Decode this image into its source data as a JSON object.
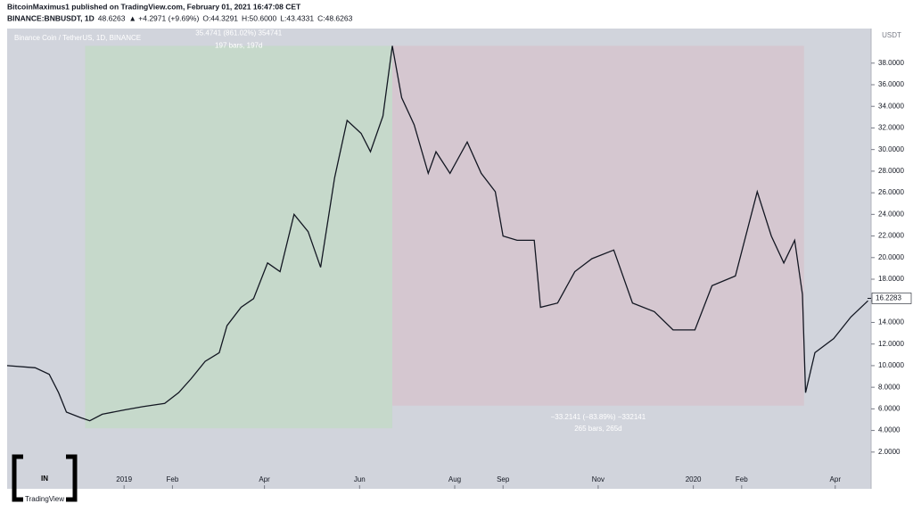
{
  "chart_data": {
    "type": "line",
    "header_line1": "BitcoinMaximus1 published on TradingView.com, February 01, 2021 16:47:08 CET",
    "header_symbol": "BINANCE:BNBUSDT, 1D",
    "header_price": "48.6263",
    "header_change": "▲ +4.2971 (+9.69%)",
    "header_ohlc": [
      "O:44.3291",
      "H:50.6000",
      "L:43.4331",
      "C:48.6263"
    ],
    "legend": "Binance Coin / TetherUS, 1D, BINANCE",
    "currency": "USDT",
    "logo": "IN",
    "watermark": "TradingView",
    "color": "#131722",
    "x": [
      -75,
      -57,
      -48,
      -42,
      -37,
      -28,
      -22,
      -14,
      0,
      12,
      26,
      35,
      43,
      52,
      61,
      66,
      75,
      83,
      92,
      100,
      109,
      118,
      126,
      135,
      143,
      152,
      158,
      166,
      172,
      178,
      186,
      195,
      200,
      209,
      220,
      229,
      238,
      243,
      252,
      263,
      267,
      278,
      289,
      300,
      314,
      326,
      340,
      352,
      366,
      377,
      392,
      406,
      415,
      423,
      430,
      435,
      437,
      443,
      455,
      466,
      477
    ],
    "values": [
      10.0,
      9.8,
      9.2,
      7.5,
      5.7,
      5.2,
      4.9,
      5.5,
      5.9,
      6.2,
      6.5,
      7.5,
      8.8,
      10.4,
      11.2,
      13.7,
      15.4,
      16.2,
      19.5,
      18.7,
      24.0,
      22.4,
      19.1,
      27.4,
      32.7,
      31.5,
      29.8,
      33.1,
      39.6,
      34.8,
      32.3,
      27.8,
      29.8,
      27.8,
      30.7,
      27.8,
      26.1,
      22.0,
      21.6,
      21.6,
      15.4,
      15.8,
      18.7,
      19.9,
      20.7,
      15.8,
      15.0,
      13.3,
      13.3,
      17.4,
      18.3,
      26.1,
      22.0,
      19.5,
      21.6,
      16.6,
      7.5,
      11.2,
      12.5,
      14.5,
      16.0
    ],
    "last_price": 16.2283,
    "ranges": [
      {
        "x": [
          -25,
          172
        ],
        "y": [
          4.2,
          39.6
        ],
        "color": "#c6d9cb",
        "labels": [
          "35.4741 (861.02%) 354741",
          "197 bars, 197d"
        ]
      },
      {
        "x": [
          172,
          436
        ],
        "y": [
          6.3,
          39.6
        ],
        "color": "#d5c7d0",
        "labels": [
          "−33.2141 (−83.89%) −332141",
          "265 bars, 265d"
        ]
      }
    ],
    "xlim": [
      -75,
      479
    ],
    "xticks": [
      {
        "value": 0,
        "label": "2019"
      },
      {
        "value": 31,
        "label": "Feb"
      },
      {
        "value": 90,
        "label": "Apr"
      },
      {
        "value": 151,
        "label": "Jun"
      },
      {
        "value": 212,
        "label": "Aug"
      },
      {
        "value": 243,
        "label": "Sep"
      },
      {
        "value": 304,
        "label": "Nov"
      },
      {
        "value": 365,
        "label": "2020"
      },
      {
        "value": 396,
        "label": "Feb"
      },
      {
        "value": 456,
        "label": "Apr"
      }
    ],
    "ylim": [
      -1.4,
      41.2
    ],
    "yticks": [
      {
        "value": 2,
        "label": "2.0000"
      },
      {
        "value": 4,
        "label": "4.0000"
      },
      {
        "value": 6,
        "label": "6.0000"
      },
      {
        "value": 8,
        "label": "8.0000"
      },
      {
        "value": 10,
        "label": "10.0000"
      },
      {
        "value": 12,
        "label": "12.0000"
      },
      {
        "value": 14,
        "label": "14.0000"
      },
      {
        "value": 16,
        "label": "16.0000"
      },
      {
        "value": 18,
        "label": "18.0000"
      },
      {
        "value": 20,
        "label": "20.0000"
      },
      {
        "value": 22,
        "label": "22.0000"
      },
      {
        "value": 24,
        "label": "24.0000"
      },
      {
        "value": 26,
        "label": "26.0000"
      },
      {
        "value": 28,
        "label": "28.0000"
      },
      {
        "value": 30,
        "label": "30.0000"
      },
      {
        "value": 32,
        "label": "32.0000"
      },
      {
        "value": 34,
        "label": "34.0000"
      },
      {
        "value": 36,
        "label": "36.0000"
      },
      {
        "value": 38,
        "label": "38.0000"
      }
    ]
  }
}
